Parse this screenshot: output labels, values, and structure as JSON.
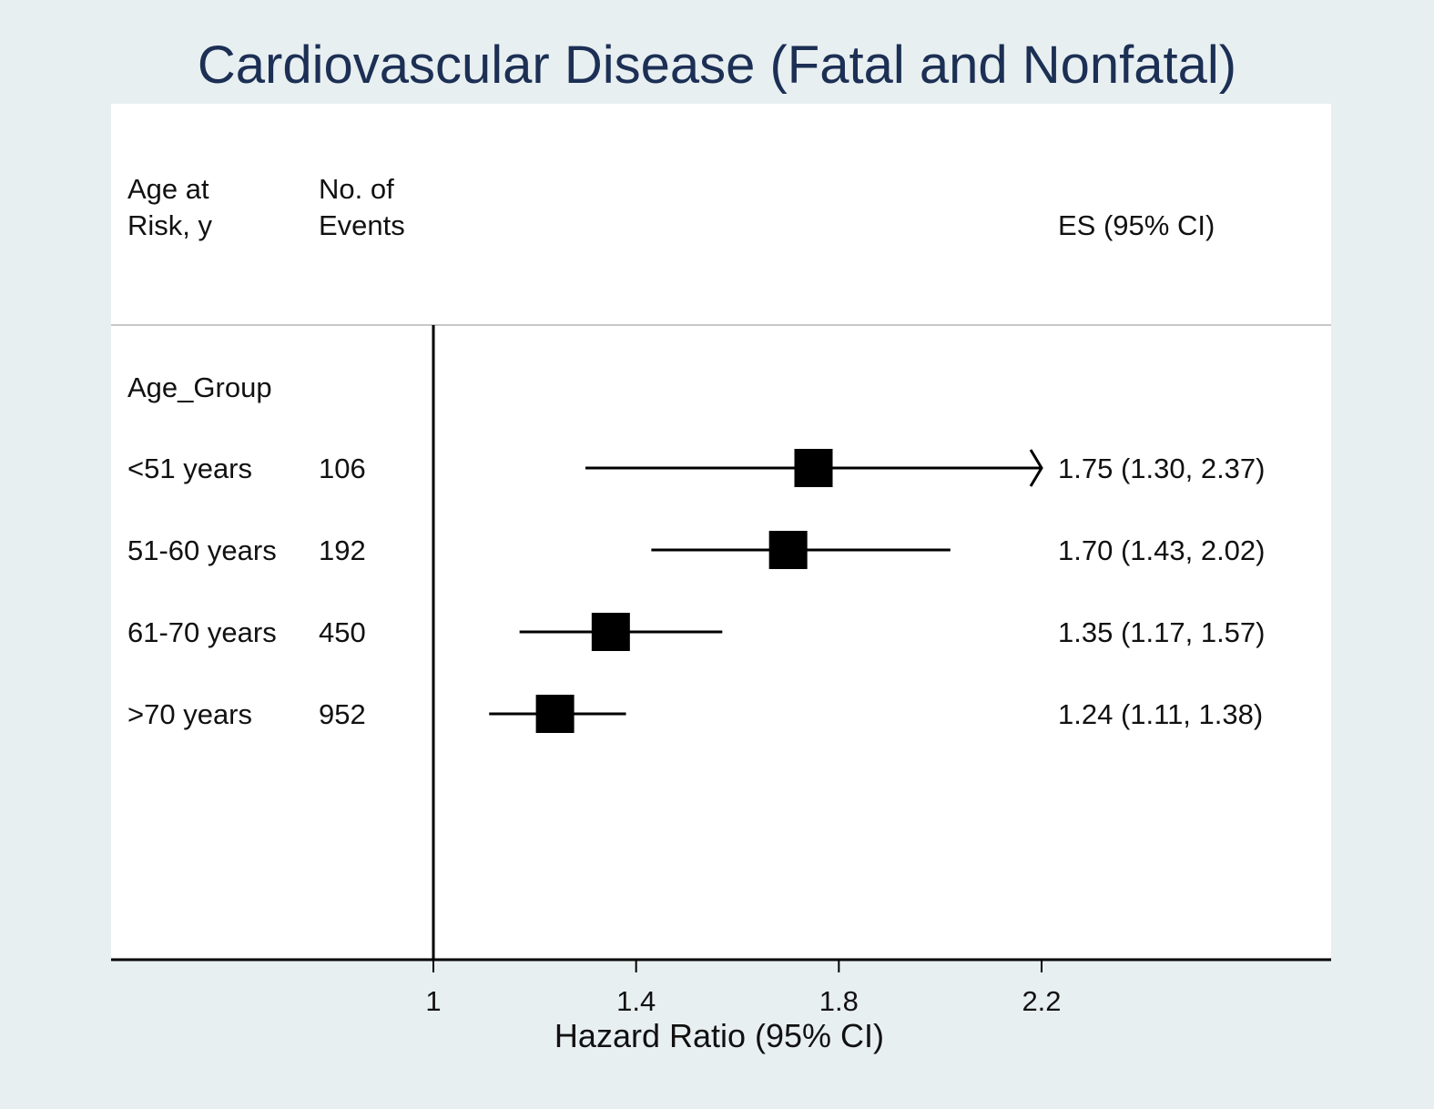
{
  "chart_data": {
    "type": "forest",
    "title": "Cardiovascular Disease (Fatal and Nonfatal)",
    "xlabel": "Hazard Ratio (95% CI)",
    "x_ticks": [
      "1",
      "1.4",
      "1.8",
      "2.2"
    ],
    "x_tick_values": [
      1,
      1.4,
      1.8,
      2.2
    ],
    "xlim": [
      1,
      2.2
    ],
    "reference_line": 1,
    "columns": {
      "label_header": [
        "Age at",
        "Risk, y"
      ],
      "events_header": [
        "No. of",
        "Events"
      ],
      "estimate_header": "ES (95% CI)"
    },
    "group_label": "Age_Group",
    "rows": [
      {
        "label": "<51 years",
        "events": "106",
        "estimate": 1.75,
        "lower": 1.3,
        "upper": 2.37,
        "estimate_text": "1.75 (1.30, 2.37)",
        "truncated_upper": true
      },
      {
        "label": "51-60 years",
        "events": "192",
        "estimate": 1.7,
        "lower": 1.43,
        "upper": 2.02,
        "estimate_text": "1.70 (1.43, 2.02)",
        "truncated_upper": false
      },
      {
        "label": "61-70 years",
        "events": "450",
        "estimate": 1.35,
        "lower": 1.17,
        "upper": 1.57,
        "estimate_text": "1.35 (1.17, 1.57)",
        "truncated_upper": false
      },
      {
        "label": ">70 years",
        "events": "952",
        "estimate": 1.24,
        "lower": 1.11,
        "upper": 1.38,
        "estimate_text": "1.24 (1.11, 1.38)",
        "truncated_upper": false
      }
    ],
    "colors": {
      "background": "#e8eff1",
      "panel": "#ffffff",
      "title": "#1c2f54",
      "marks": "#000000"
    }
  }
}
